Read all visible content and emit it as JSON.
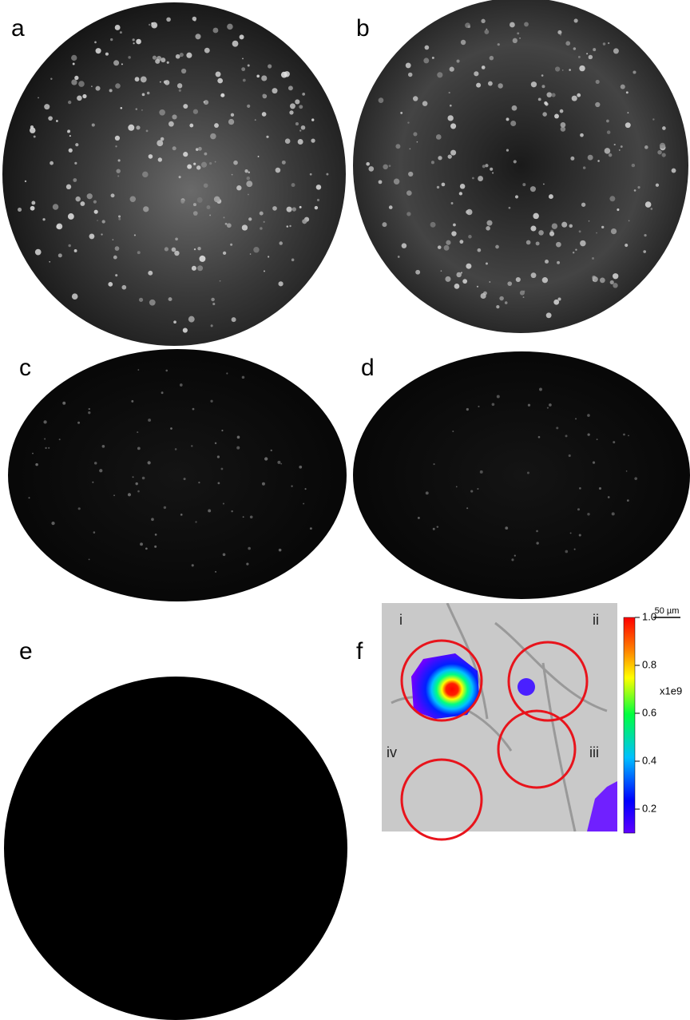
{
  "panels": [
    {
      "label": "a"
    },
    {
      "label": "b"
    },
    {
      "label": "c"
    },
    {
      "label": "d"
    },
    {
      "label": "e"
    }
  ],
  "scale_bar": "50 µm",
  "panel_f": {
    "label": "f",
    "regions": [
      "i",
      "ii",
      "iii",
      "iv"
    ],
    "colorbar": {
      "range": [
        0.1,
        1.0
      ],
      "ticks": [
        {
          "value": 1.0,
          "label": "1.0"
        },
        0.8,
        0.6,
        0.4,
        0.2
      ],
      "unit": "x1e9"
    }
  }
}
